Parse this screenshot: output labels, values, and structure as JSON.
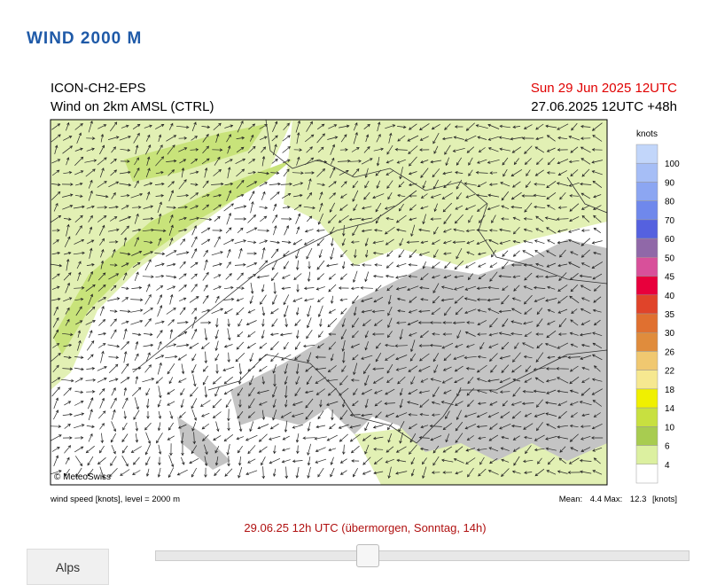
{
  "header": {
    "title": "WIND 2000 M"
  },
  "map": {
    "model": "ICON-CH2-EPS",
    "subtitle": "Wind on 2km AMSL (CTRL)",
    "valid_time": "Sun 29 Jun 2025 12UTC",
    "run": "27.06.2025 12UTC +48h",
    "copyright": "© MeteoSwiss"
  },
  "colorbar": {
    "unit": "knots",
    "labels": [
      100,
      90,
      80,
      70,
      60,
      50,
      45,
      40,
      35,
      30,
      26,
      22,
      18,
      14,
      10,
      6,
      4
    ],
    "colors": [
      "#c2d6fa",
      "#a6bef6",
      "#8ca6f2",
      "#6f88ec",
      "#5561df",
      "#9068a8",
      "#d8509a",
      "#e8003c",
      "#e0442a",
      "#e07030",
      "#e08c3c",
      "#f0c870",
      "#f6e890",
      "#f0f000",
      "#c8e040",
      "#a8cc50",
      "#dcf0a0",
      "#ffffff"
    ]
  },
  "footer": {
    "caption": "wind speed [knots], level = 2000 m",
    "mean_label": "Mean:",
    "mean": 4.4,
    "max_label": "Max:",
    "max": 12.3,
    "unit": "[knots]"
  },
  "timestamp": "29.06.25 12h UTC (übermorgen, Sonntag, 14h)",
  "region_button": "Alps"
}
